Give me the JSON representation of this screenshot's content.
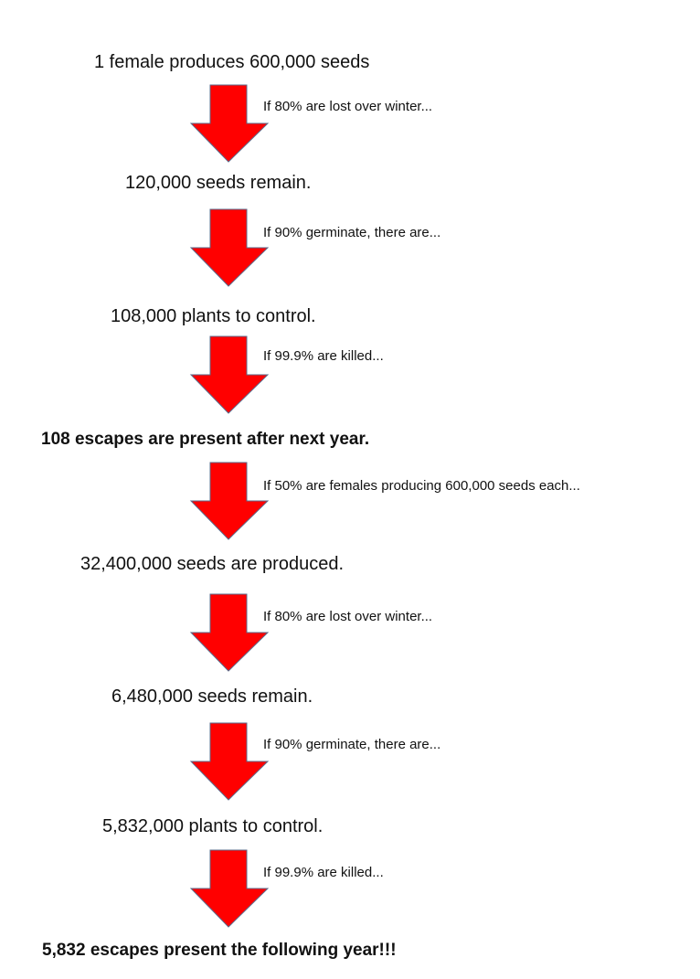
{
  "steps": [
    {
      "text": "1 female produces 600,000 seeds",
      "bold": false
    },
    {
      "text": "120,000 seeds remain.",
      "bold": false
    },
    {
      "text": "108,000 plants to control.",
      "bold": false
    },
    {
      "text": "108 escapes are present after next year.",
      "bold": true
    },
    {
      "text": "32,400,000 seeds are produced.",
      "bold": false
    },
    {
      "text": "6,480,000 seeds remain.",
      "bold": false
    },
    {
      "text": "5,832,000 plants to control.",
      "bold": false
    },
    {
      "text": "5,832 escapes present the following year!!!",
      "bold": true
    }
  ],
  "transitions": [
    "If 80% are lost over winter...",
    "If 90% germinate, there are...",
    "If 99.9% are killed...",
    "If 50% are females producing 600,000 seeds each...",
    "If 80% are lost over winter...",
    "If 90% germinate, there are...",
    "If 99.9% are killed..."
  ],
  "colors": {
    "arrow_fill": "#ff0000",
    "arrow_outline": "#5a6a8a"
  }
}
